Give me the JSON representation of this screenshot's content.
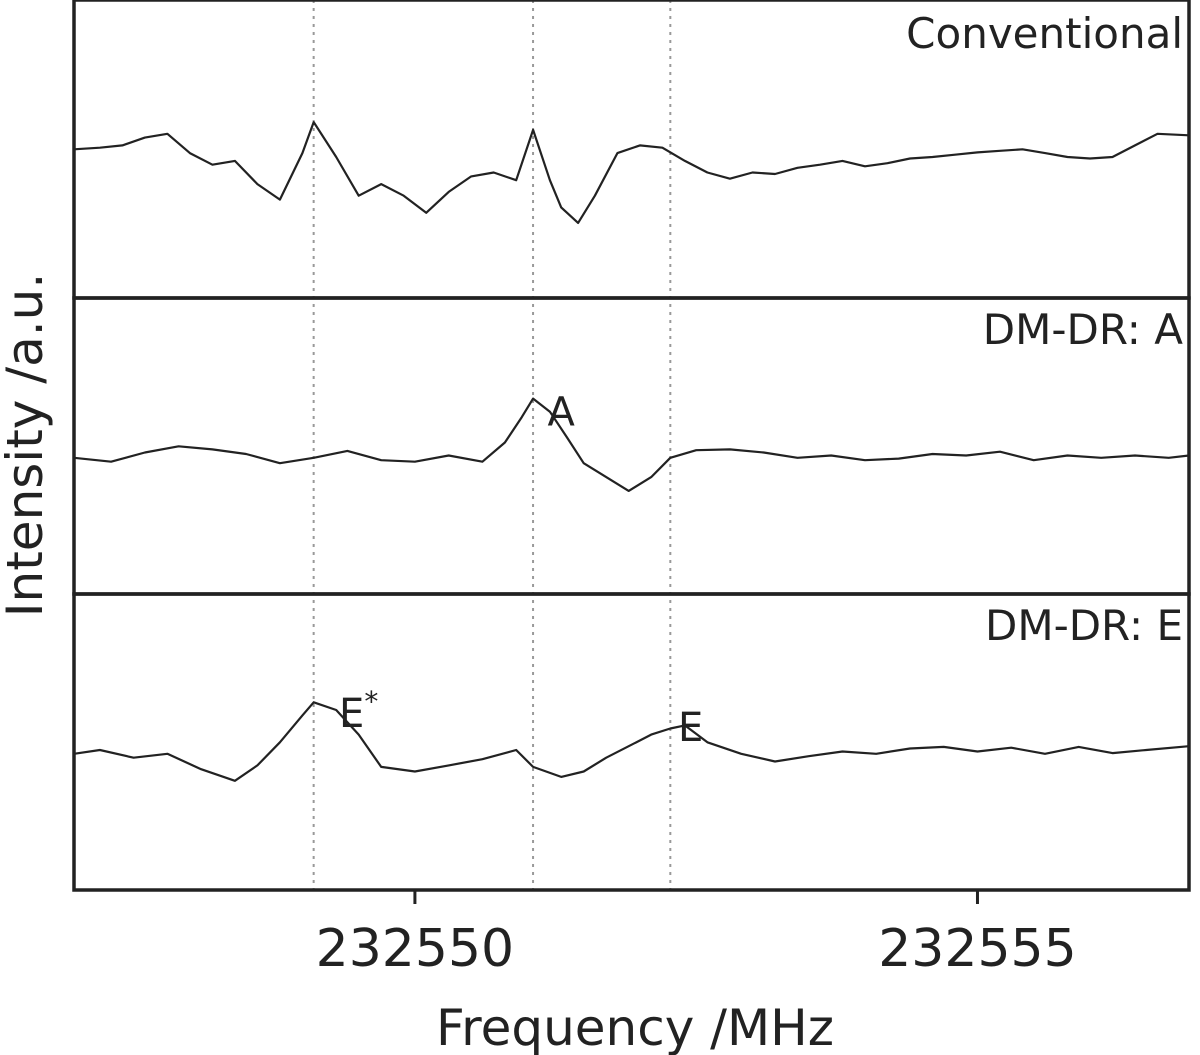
{
  "chart_data": {
    "type": "line",
    "xlabel": "Frequency /MHz",
    "ylabel": "Intensity /a.u.",
    "xlim": [
      232546.97,
      232556.88
    ],
    "xticks": [
      232550,
      232555
    ],
    "tick_labels": [
      "232550",
      "232555"
    ],
    "markers_mhz": [
      232549.1,
      232551.05,
      232552.27
    ],
    "grid": false,
    "line_color": "#222222",
    "marker_color": "#999999",
    "panels": [
      {
        "id": "conventional",
        "label": "Conventional",
        "annotations": [],
        "series": [
          {
            "x": [
              232546.97,
              232547.2,
              232547.4,
              232547.6,
              232547.8,
              232548.0,
              232548.2,
              232548.4,
              232548.6,
              232548.8,
              232549.0,
              232549.1,
              232549.3,
              232549.5,
              232549.7,
              232549.9,
              232550.1,
              232550.3,
              232550.5,
              232550.7,
              232550.9,
              232551.05,
              232551.2,
              232551.3,
              232551.45,
              232551.6,
              232551.8,
              232552.0,
              232552.2,
              232552.4,
              232552.6,
              232552.8,
              232553.0,
              232553.2,
              232553.4,
              232553.6,
              232553.8,
              232554.0,
              232554.2,
              232554.4,
              232554.6,
              232554.8,
              232555.0,
              232555.2,
              232555.4,
              232555.6,
              232555.8,
              232556.0,
              232556.2,
              232556.4,
              232556.6,
              232556.88
            ],
            "y": [
              0.1,
              0.12,
              0.15,
              0.25,
              0.3,
              0.05,
              -0.1,
              -0.05,
              -0.35,
              -0.55,
              0.05,
              0.45,
              0.0,
              -0.5,
              -0.35,
              -0.5,
              -0.72,
              -0.45,
              -0.25,
              -0.2,
              -0.3,
              0.35,
              -0.3,
              -0.65,
              -0.85,
              -0.5,
              0.05,
              0.15,
              0.12,
              -0.05,
              -0.2,
              -0.28,
              -0.2,
              -0.22,
              -0.14,
              -0.1,
              -0.05,
              -0.12,
              -0.08,
              -0.02,
              0.0,
              0.03,
              0.06,
              0.08,
              0.1,
              0.05,
              0.0,
              -0.02,
              0.0,
              0.15,
              0.3,
              0.28
            ]
          }
        ]
      },
      {
        "id": "dmdr-a",
        "label": "DM-DR: A",
        "annotations": [
          {
            "text": "A",
            "x": 232551.3,
            "y": 0.55
          }
        ],
        "series": [
          {
            "x": [
              232546.97,
              232547.3,
              232547.6,
              232547.9,
              232548.2,
              232548.5,
              232548.8,
              232549.1,
              232549.4,
              232549.7,
              232550.0,
              232550.3,
              232550.6,
              232550.8,
              232550.95,
              232551.05,
              232551.2,
              232551.35,
              232551.5,
              232551.7,
              232551.9,
              232552.1,
              232552.27,
              232552.5,
              232552.8,
              232553.1,
              232553.4,
              232553.7,
              232554.0,
              232554.3,
              232554.6,
              232554.9,
              232555.2,
              232555.5,
              232555.8,
              232556.1,
              232556.4,
              232556.7,
              232556.88
            ],
            "y": [
              -0.05,
              -0.1,
              0.02,
              0.1,
              0.06,
              0.0,
              -0.12,
              -0.05,
              0.04,
              -0.08,
              -0.1,
              -0.02,
              -0.1,
              0.15,
              0.48,
              0.72,
              0.55,
              0.22,
              -0.12,
              -0.3,
              -0.48,
              -0.3,
              -0.05,
              0.05,
              0.06,
              0.02,
              -0.05,
              -0.02,
              -0.08,
              -0.06,
              0.0,
              -0.02,
              0.03,
              -0.08,
              -0.02,
              -0.05,
              -0.02,
              -0.05,
              -0.02
            ]
          }
        ]
      },
      {
        "id": "dmdr-e",
        "label": "DM-DR: E",
        "annotations": [
          {
            "text": "E",
            "sup": "*",
            "x": 232549.5,
            "y": 0.48
          },
          {
            "text": "E",
            "x": 232552.45,
            "y": 0.3
          }
        ],
        "series": [
          {
            "x": [
              232546.97,
              232547.2,
              232547.5,
              232547.8,
              232548.1,
              232548.4,
              232548.6,
              232548.8,
              232549.0,
              232549.1,
              232549.3,
              232549.5,
              232549.7,
              232550.0,
              232550.3,
              232550.6,
              232550.9,
              232551.05,
              232551.3,
              232551.5,
              232551.7,
              232551.9,
              232552.1,
              232552.27,
              232552.4,
              232552.6,
              232552.9,
              232553.2,
              232553.5,
              232553.8,
              232554.1,
              232554.4,
              232554.7,
              232555.0,
              232555.3,
              232555.6,
              232555.9,
              232556.2,
              232556.5,
              232556.88
            ],
            "y": [
              -0.05,
              0.0,
              -0.1,
              -0.05,
              -0.25,
              -0.4,
              -0.2,
              0.1,
              0.45,
              0.62,
              0.52,
              0.2,
              -0.22,
              -0.28,
              -0.2,
              -0.12,
              0.0,
              -0.22,
              -0.35,
              -0.28,
              -0.1,
              0.05,
              0.2,
              0.28,
              0.32,
              0.1,
              -0.05,
              -0.15,
              -0.08,
              -0.02,
              -0.05,
              0.02,
              0.04,
              -0.02,
              0.03,
              -0.05,
              0.04,
              -0.04,
              0.0,
              0.05
            ]
          }
        ]
      }
    ]
  }
}
